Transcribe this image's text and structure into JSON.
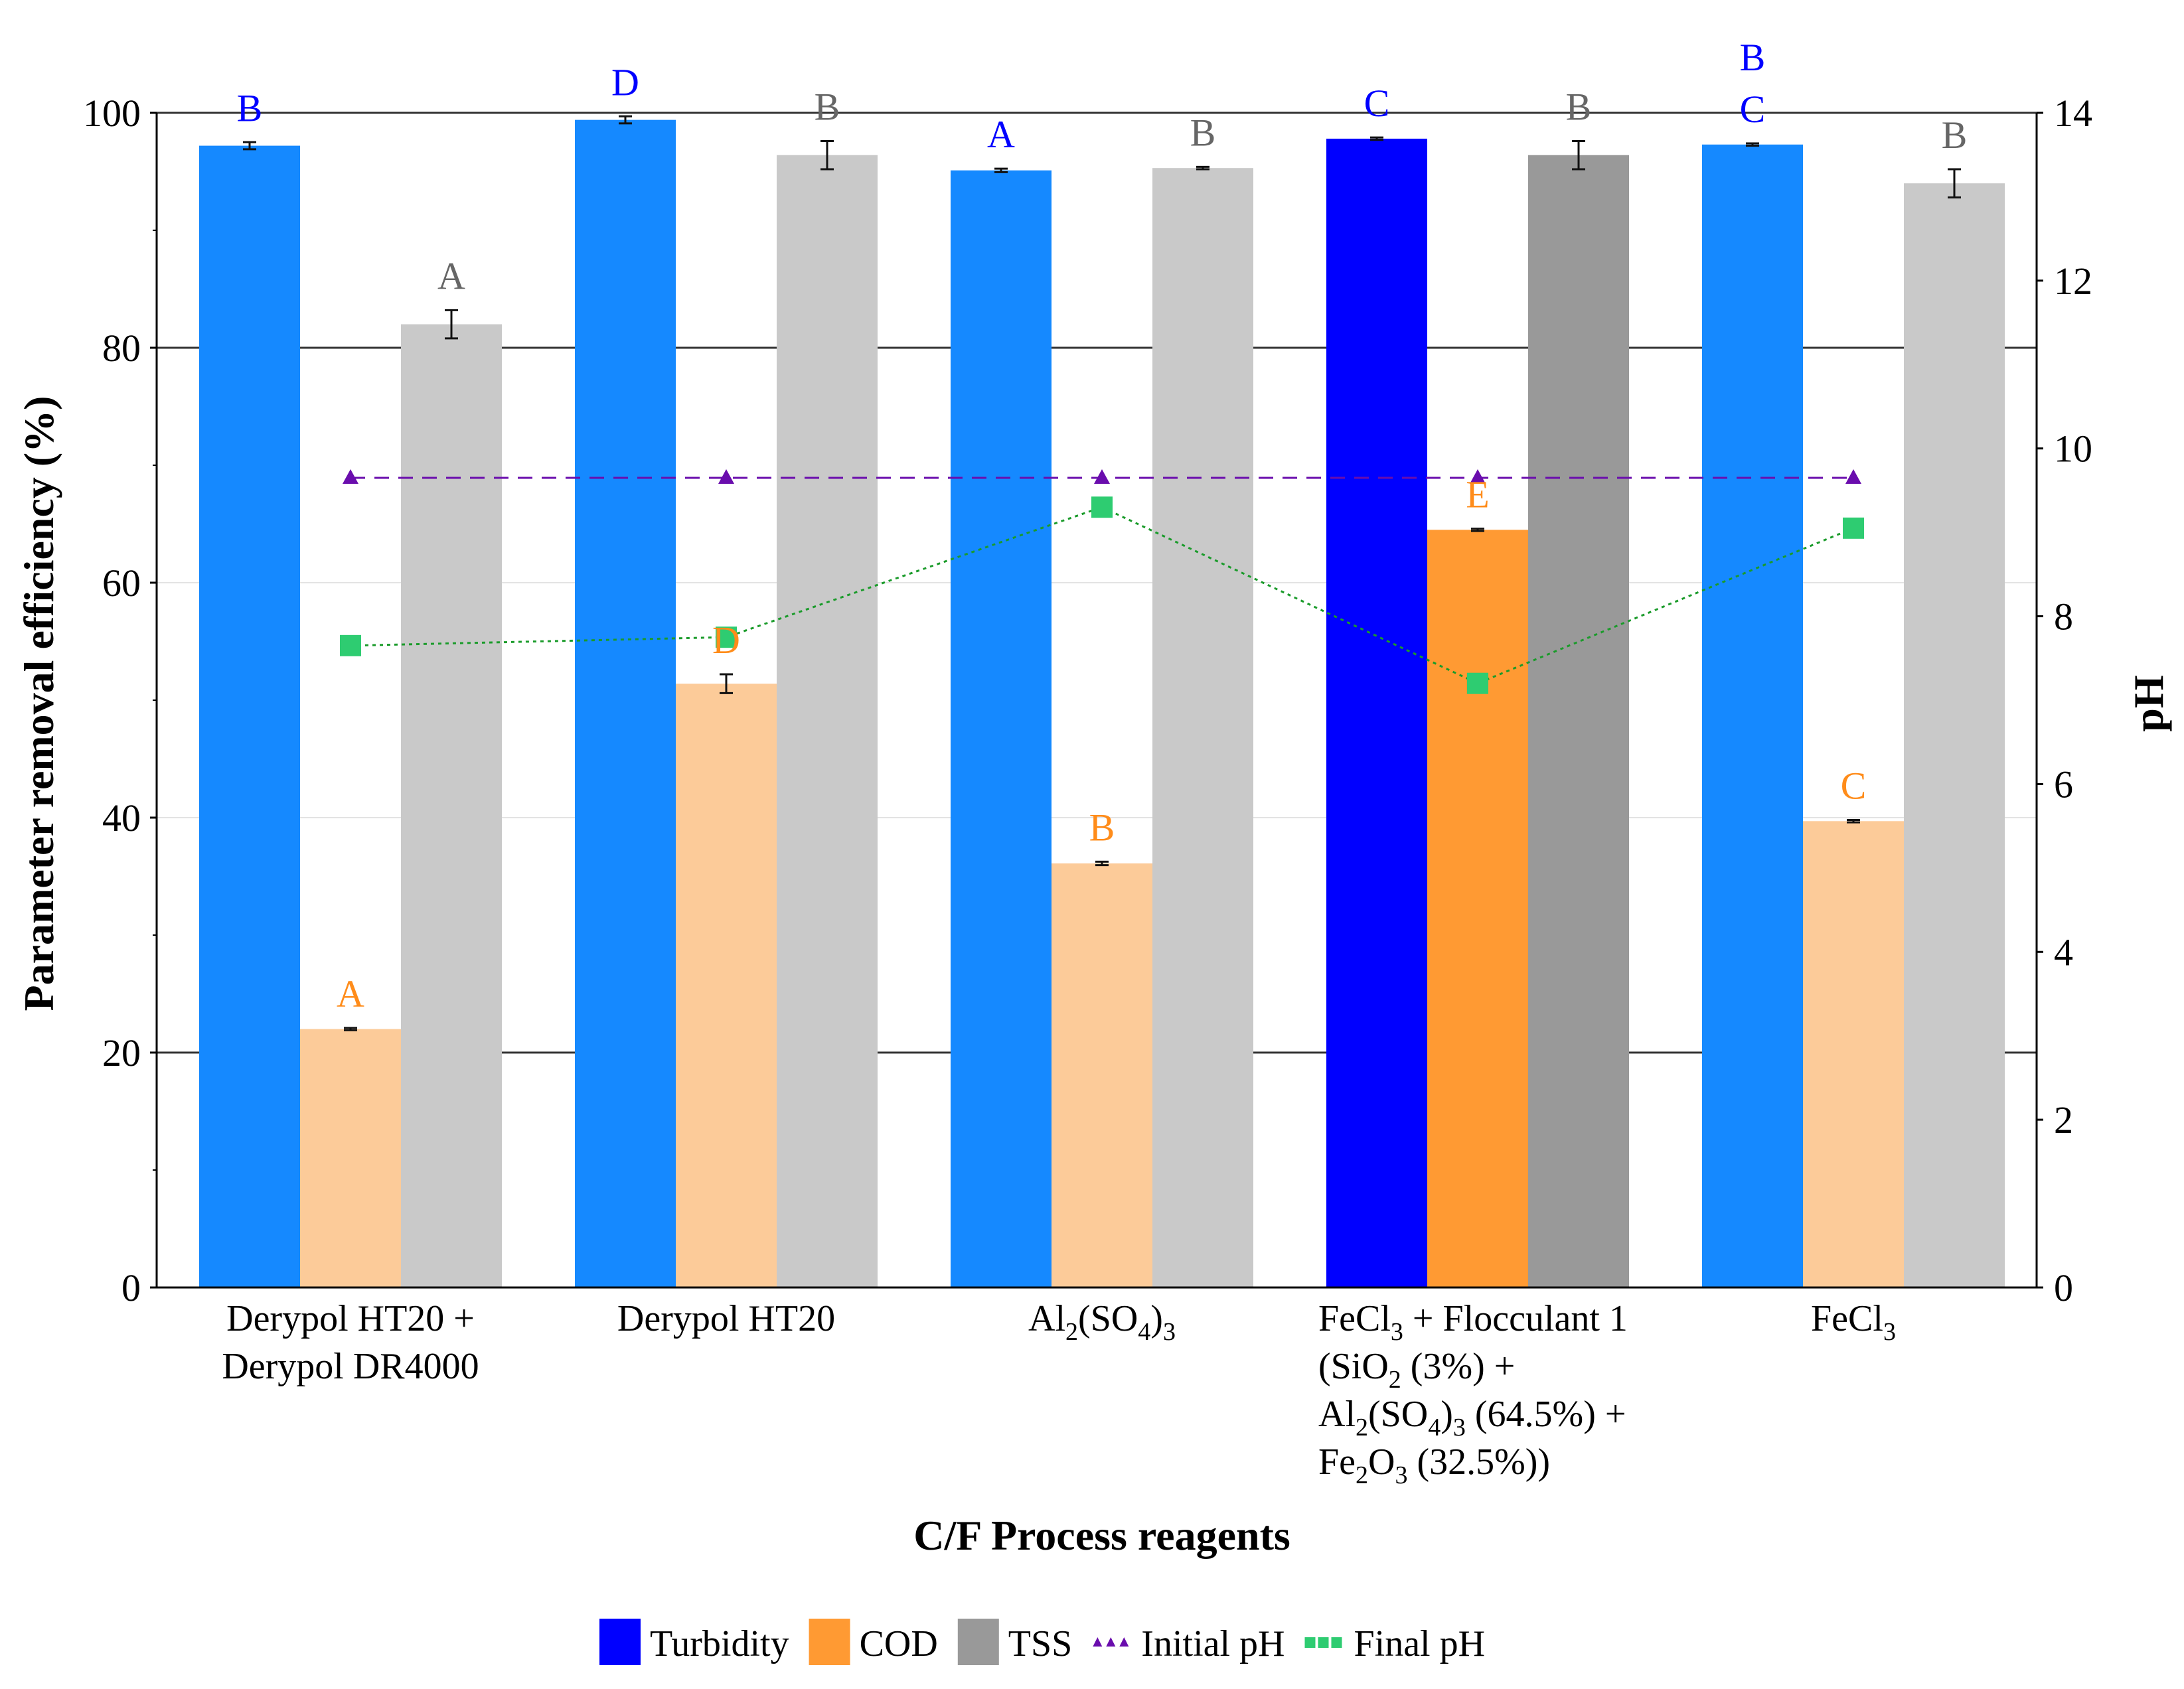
{
  "chart_data": {
    "type": "bar",
    "xlabel": "C/F Process reagents",
    "ylabel": "Parameter removal efficiency (%)",
    "y2label": "pH",
    "ylim": [
      0,
      100
    ],
    "y2lim": [
      0,
      14
    ],
    "yticks": [
      "0",
      "20",
      "40",
      "60",
      "80",
      "100"
    ],
    "y2ticks": [
      "0",
      "2",
      "4",
      "6",
      "8",
      "10",
      "12",
      "14"
    ],
    "grid": "major horizontal lines at 20, 80, 100",
    "legend_position": "bottom-center",
    "categories": [
      {
        "lines": [
          [
            {
              "t": "Derypol HT20 +"
            }
          ],
          [
            {
              "t": "Derypol DR4000"
            }
          ]
        ]
      },
      {
        "lines": [
          [
            {
              "t": "Derypol HT20"
            }
          ]
        ]
      },
      {
        "lines": [
          [
            {
              "t": "Al"
            },
            {
              "t": "2",
              "sub": true
            },
            {
              "t": "(SO"
            },
            {
              "t": "4",
              "sub": true
            },
            {
              "t": ")"
            },
            {
              "t": "3",
              "sub": true
            }
          ]
        ]
      },
      {
        "lines": [
          [
            {
              "t": "FeCl"
            },
            {
              "t": "3",
              "sub": true
            },
            {
              "t": " + Flocculant 1"
            }
          ],
          [
            {
              "t": "(SiO"
            },
            {
              "t": "2",
              "sub": true
            },
            {
              "t": " (3%) +"
            }
          ],
          [
            {
              "t": "Al"
            },
            {
              "t": "2",
              "sub": true
            },
            {
              "t": "(SO"
            },
            {
              "t": "4",
              "sub": true
            },
            {
              "t": ")"
            },
            {
              "t": "3",
              "sub": true
            },
            {
              "t": " (64.5%) +"
            }
          ],
          [
            {
              "t": "Fe"
            },
            {
              "t": "2",
              "sub": true
            },
            {
              "t": "O"
            },
            {
              "t": "3",
              "sub": true
            },
            {
              "t": " (32.5%))"
            }
          ]
        ]
      },
      {
        "lines": [
          [
            {
              "t": "FeCl"
            },
            {
              "t": "3",
              "sub": true
            }
          ]
        ]
      }
    ],
    "series": [
      {
        "name": "Turbidity",
        "kind": "bar",
        "values": [
          97.2,
          99.4,
          95.1,
          97.8,
          97.3
        ],
        "errors": [
          0.3,
          0.3,
          0.15,
          0.1,
          0.1
        ],
        "letters": [
          [
            "B"
          ],
          [
            "D"
          ],
          [
            "A"
          ],
          [
            "C"
          ],
          [
            "B",
            "C"
          ]
        ],
        "colors": [
          "#1589ff",
          "#1589ff",
          "#1589ff",
          "#0000ff",
          "#1589ff"
        ],
        "letter_color": "#0000ff"
      },
      {
        "name": "COD",
        "kind": "bar",
        "values": [
          22.0,
          51.4,
          36.1,
          64.5,
          39.7
        ],
        "errors": [
          0.1,
          0.8,
          0.15,
          0.1,
          0.1
        ],
        "letters": [
          [
            "A"
          ],
          [
            "D"
          ],
          [
            "B"
          ],
          [
            "E"
          ],
          [
            "C"
          ]
        ],
        "colors": [
          "#fccb99",
          "#fccb99",
          "#fccb99",
          "#ff9a33",
          "#fccb99"
        ],
        "letter_color": "#ff8c1a"
      },
      {
        "name": "TSS",
        "kind": "bar",
        "values": [
          82.0,
          96.4,
          95.3,
          96.4,
          94.0
        ],
        "errors": [
          1.2,
          1.2,
          0.1,
          1.2,
          1.2
        ],
        "letters": [
          [
            "A"
          ],
          [
            "B"
          ],
          [
            "B"
          ],
          [
            "B"
          ],
          [
            "B"
          ]
        ],
        "colors": [
          "#c9c9c9",
          "#c9c9c9",
          "#c9c9c9",
          "#999999",
          "#c9c9c9"
        ],
        "letter_color": "#666666"
      },
      {
        "name": "Initial pH",
        "kind": "line",
        "axis": "pH",
        "values": [
          9.65,
          9.65,
          9.65,
          9.65,
          9.65
        ],
        "color": "#6a0dad",
        "marker": "triangle",
        "linestyle": "dashed"
      },
      {
        "name": "Final pH",
        "kind": "line",
        "axis": "pH",
        "values": [
          7.65,
          7.75,
          9.3,
          7.2,
          9.05
        ],
        "color": "#2ecc71",
        "line_color": "#1a9b2a",
        "marker": "square",
        "linestyle": "dotted"
      }
    ]
  }
}
